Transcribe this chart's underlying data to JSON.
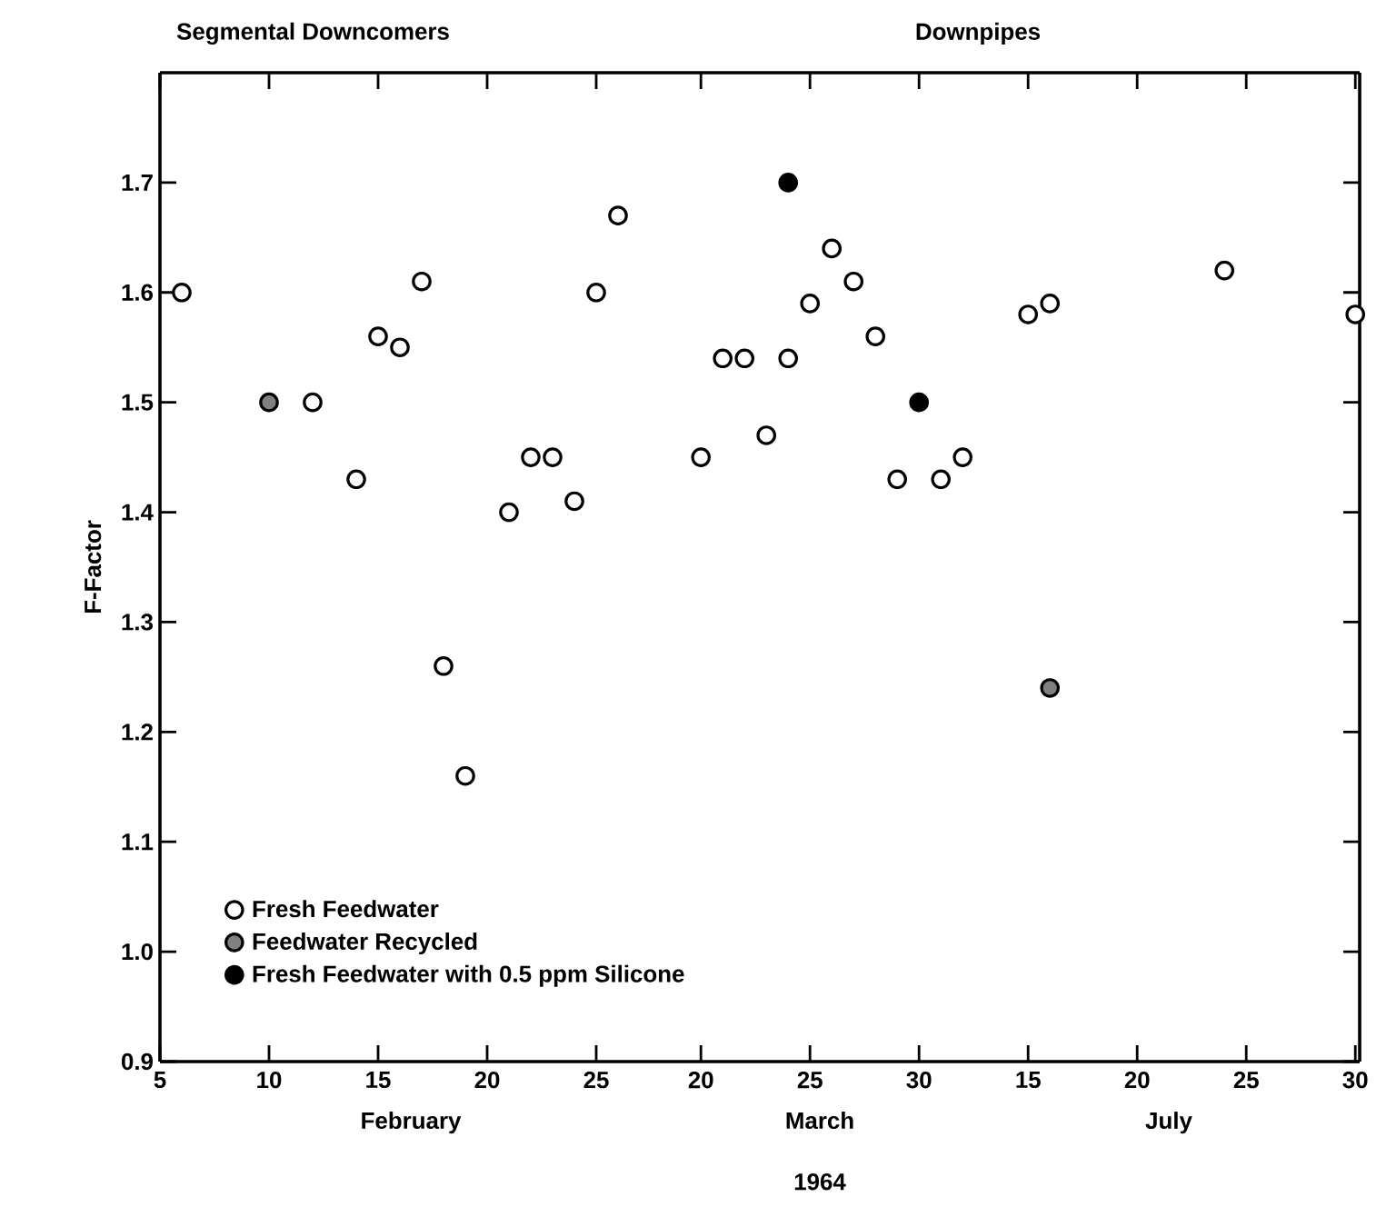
{
  "chart_data": [
    {
      "type": "scatter",
      "title": "Segmental Downcomers",
      "xlabel": "February",
      "ylabel": "F-Factor",
      "xlim": [
        5,
        28
      ],
      "xticks": [
        5,
        10,
        15,
        20,
        25
      ],
      "ylim": [
        0.9,
        1.8
      ],
      "yticks": [
        {
          "value": 0.9,
          "label": "0.9"
        },
        {
          "value": 1.0,
          "label": "1.0"
        },
        {
          "value": 1.1,
          "label": "1.1"
        },
        {
          "value": 1.2,
          "label": "1.2"
        },
        {
          "value": 1.3,
          "label": "1.3"
        },
        {
          "value": 1.4,
          "label": "1.4"
        },
        {
          "value": 1.5,
          "label": "1.5"
        },
        {
          "value": 1.6,
          "label": "1.6"
        },
        {
          "value": 1.7,
          "label": "1.7"
        }
      ],
      "marker": "circle",
      "legend": "bottom left",
      "series": [
        {
          "name": "Fresh Feedwater",
          "color": "#ffffff",
          "x": [
            6,
            12,
            14,
            15,
            16,
            17,
            18,
            19,
            21,
            22,
            23,
            24,
            25,
            26
          ],
          "values": [
            1.6,
            1.5,
            1.43,
            1.56,
            1.55,
            1.61,
            1.26,
            1.16,
            1.4,
            1.45,
            1.45,
            1.41,
            1.6,
            1.67
          ]
        },
        {
          "name": "Feedwater Recycled",
          "color": "#808080",
          "x": [
            10
          ],
          "values": [
            1.5
          ]
        }
      ]
    },
    {
      "type": "scatter",
      "title": "Downpipes",
      "xlabel": "March",
      "annotations": [
        "1964"
      ],
      "xlim": [
        18.2,
        32.7
      ],
      "xticks": [
        20,
        25,
        30
      ],
      "ylim": [
        0.9,
        1.8
      ],
      "tick_labels": "x",
      "marker": "circle",
      "series": [
        {
          "color": "#ffffff",
          "x": [
            20,
            21,
            22,
            23,
            24,
            25,
            26,
            27,
            28,
            29,
            31,
            32
          ],
          "values": [
            1.45,
            1.54,
            1.54,
            1.47,
            1.54,
            1.59,
            1.64,
            1.61,
            1.56,
            1.43,
            1.43,
            1.45
          ]
        },
        {
          "name": "Fresh Feedwater with 0.5 ppm Silicone",
          "color": "#000000",
          "x": [
            24,
            30
          ],
          "values": [
            1.7,
            1.5
          ]
        }
      ]
    },
    {
      "type": "scatter",
      "xlabel": "July",
      "xlim": [
        12.7,
        30.2
      ],
      "xticks": [
        15,
        20,
        25,
        30
      ],
      "ylim": [
        0.9,
        1.8
      ],
      "yticks": [
        {
          "value": 0.9,
          "label": null
        },
        {
          "value": 1.0,
          "label": null
        },
        {
          "value": 1.1,
          "label": null
        },
        {
          "value": 1.2,
          "label": null
        },
        {
          "value": 1.3,
          "label": null
        },
        {
          "value": 1.4,
          "label": null
        },
        {
          "value": 1.5,
          "label": null
        },
        {
          "value": 1.6,
          "label": null
        },
        {
          "value": 1.7,
          "label": null
        }
      ],
      "tick_labels": "x",
      "marker": "circle",
      "series": [
        {
          "color": "#ffffff",
          "x": [
            15,
            16,
            24,
            30
          ],
          "values": [
            1.58,
            1.59,
            1.62,
            1.58
          ]
        },
        {
          "color": "#808080",
          "x": [
            16
          ],
          "values": [
            1.24
          ]
        }
      ]
    }
  ]
}
